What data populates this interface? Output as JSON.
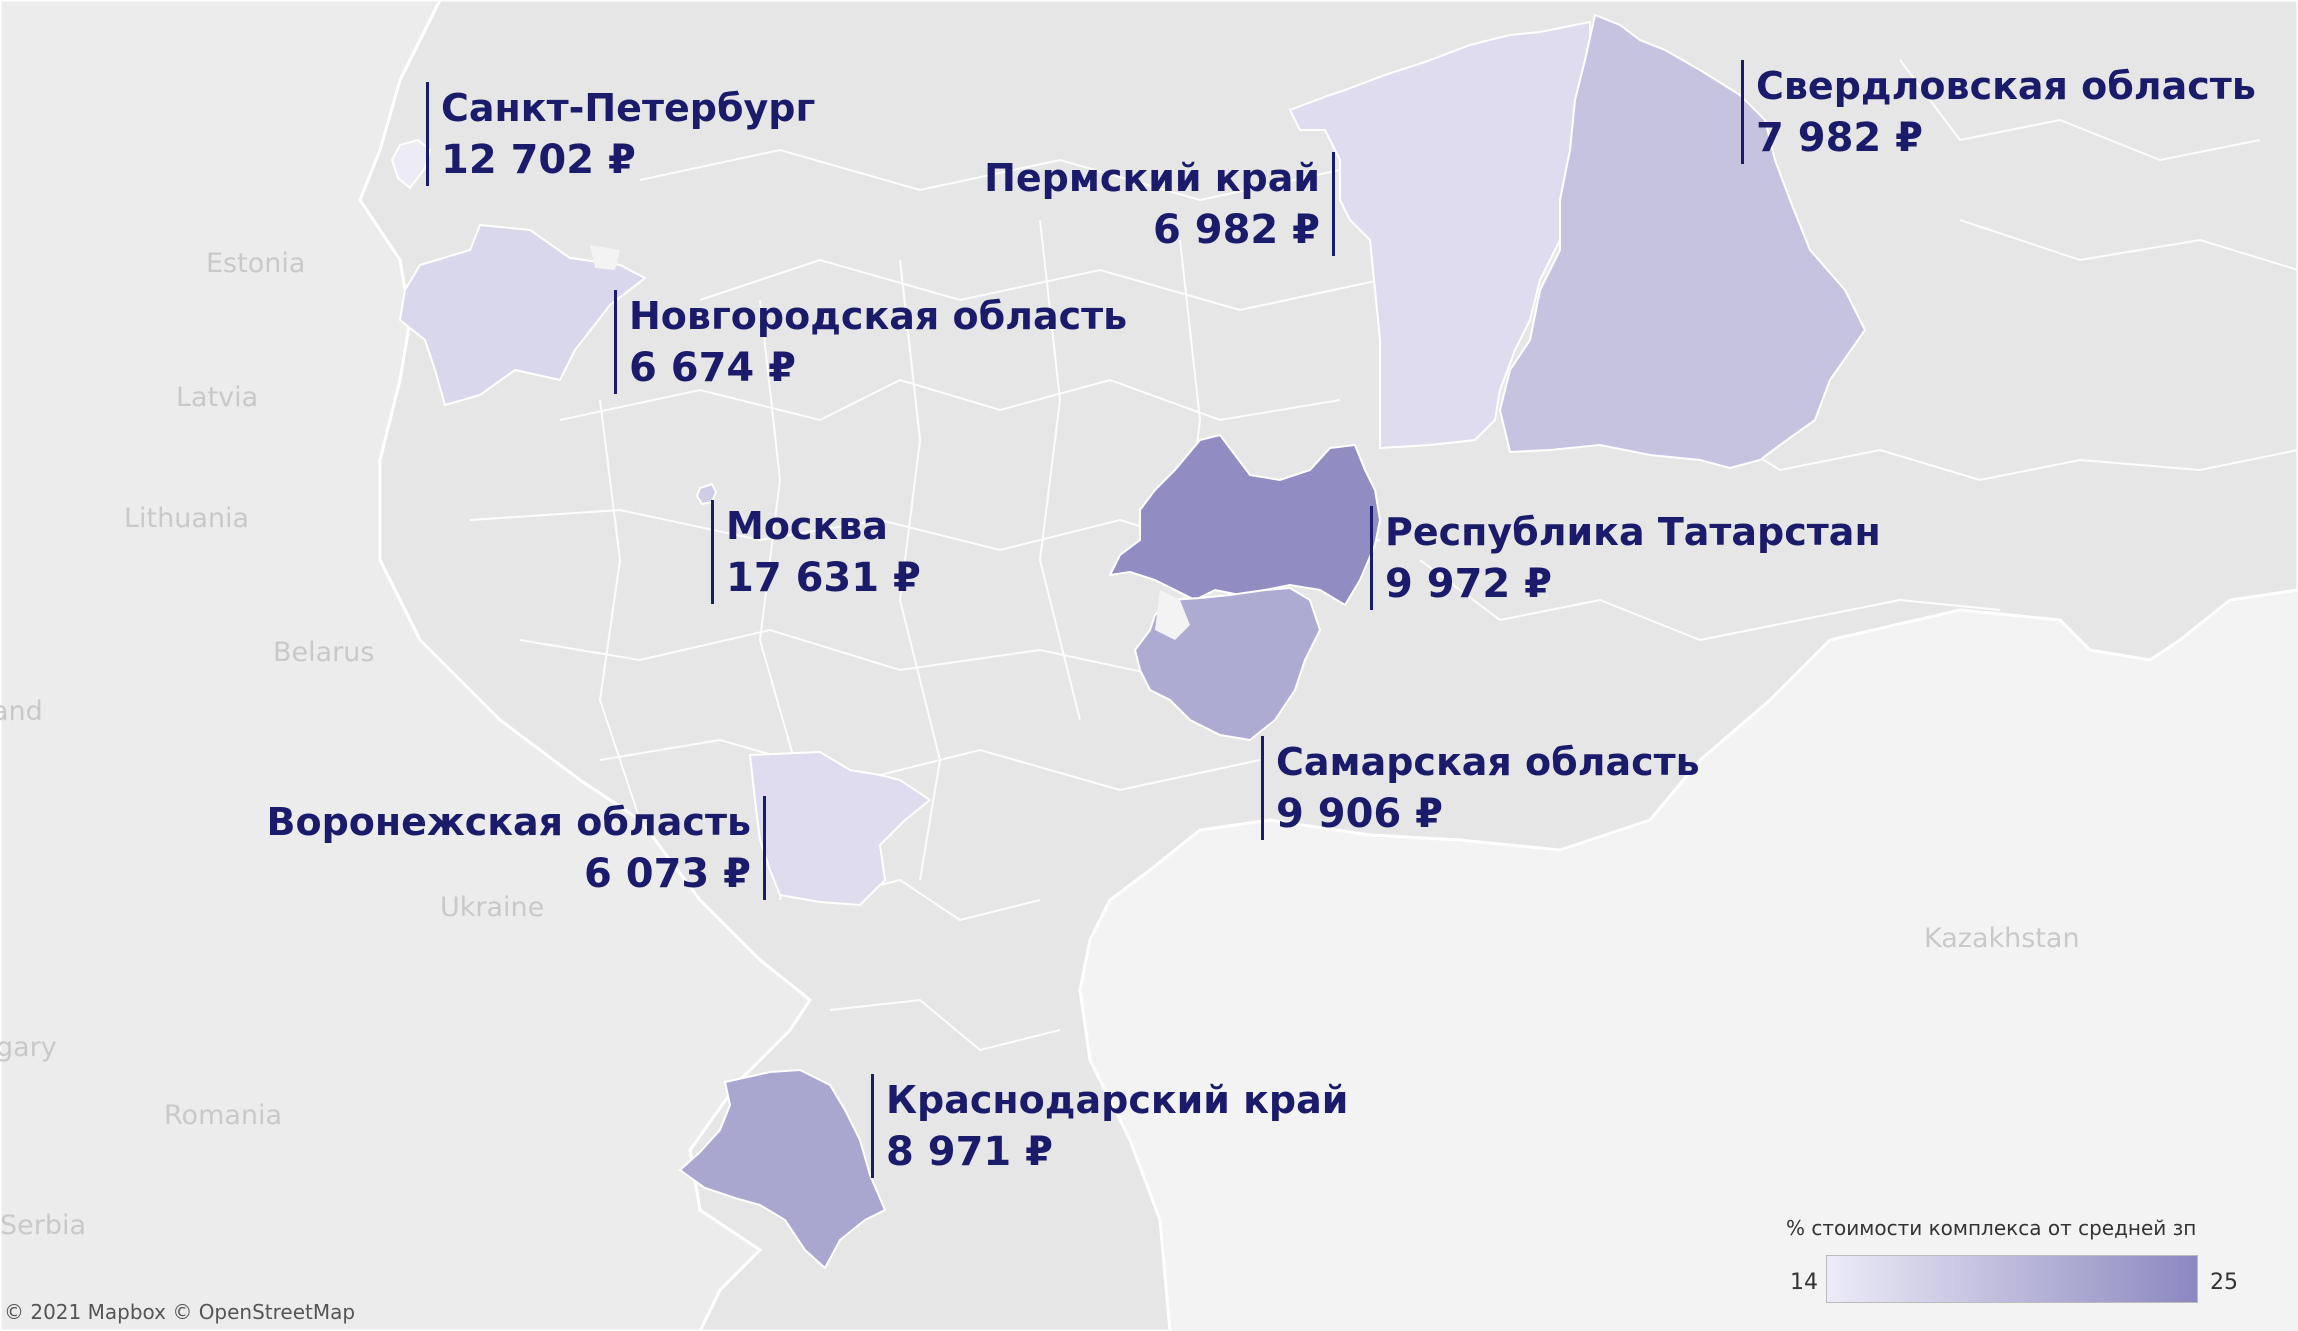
{
  "regions": [
    {
      "id": "spb",
      "name": "Санкт-Петербург",
      "value": "12 702 ₽",
      "pct": 0.0
    },
    {
      "id": "novgorod",
      "name": "Новгородская область",
      "value": "6 674 ₽",
      "pct": 0.2
    },
    {
      "id": "moscow",
      "name": "Москва",
      "value": "17 631 ₽",
      "pct": 0.3
    },
    {
      "id": "voronezh",
      "name": "Воронежская область",
      "value": "6 073 ₽",
      "pct": 0.15
    },
    {
      "id": "krasnodar",
      "name": "Краснодарский край",
      "value": "8 971 ₽",
      "pct": 0.7
    },
    {
      "id": "perm",
      "name": "Пермский край",
      "value": "6 982 ₽",
      "pct": 0.15
    },
    {
      "id": "sverdlovsk",
      "name": "Свердловская область",
      "value": "7 982 ₽",
      "pct": 0.4
    },
    {
      "id": "tatarstan",
      "name": "Республика Татарстан",
      "value": "9 972 ₽",
      "pct": 0.95
    },
    {
      "id": "samara",
      "name": "Самарская область",
      "value": "9 906 ₽",
      "pct": 0.65
    }
  ],
  "countries": [
    "Estonia",
    "Latvia",
    "Lithuania",
    "Belarus",
    "Ukraine",
    "Kazakhstan",
    "Romania",
    "Serbia",
    "and",
    "gary"
  ],
  "legend": {
    "title": "% стоимости комплекса от средней зп",
    "min": "14",
    "max": "25",
    "color_low": "#ecebf6",
    "color_high": "#8c88c0"
  },
  "attribution": "© 2021 Mapbox © OpenStreetMap",
  "colors": {
    "label": "#1a1b6b",
    "land": "#e6e6e6",
    "water": "#f3f3f3"
  }
}
